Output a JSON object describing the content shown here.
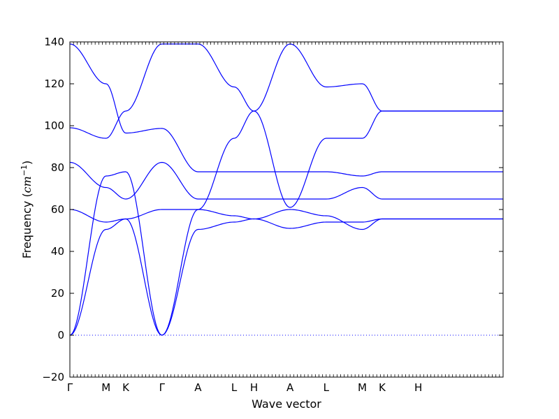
{
  "chart_data": {
    "type": "line",
    "title": "",
    "xlabel": "Wave vector",
    "ylabel_text": "Frequency (",
    "ylabel_unit": "cm",
    "ylabel_exp": "−1",
    "ylabel_close": ")",
    "ylim": [
      -20,
      140
    ],
    "yticks": [
      -20,
      0,
      20,
      40,
      60,
      80,
      100,
      120,
      140
    ],
    "xlim": [
      0,
      12
    ],
    "xticks": [
      {
        "label": "Γ",
        "x": 0
      },
      {
        "label": "M",
        "x": 1
      },
      {
        "label": "K",
        "x": 1.55
      },
      {
        "label": "Γ",
        "x": 2.55
      },
      {
        "label": "A",
        "x": 3.55
      },
      {
        "label": "L",
        "x": 4.55
      },
      {
        "label": "H",
        "x": 5.1
      },
      {
        "label": "A",
        "x": 6.1
      },
      {
        "label": "L",
        "x": 7.1
      },
      {
        "label": "M",
        "x": 8.1
      },
      {
        "label": "K",
        "x": 8.65
      },
      {
        "label": "H",
        "x": 9.65
      }
    ],
    "grid": false,
    "line_color": "#0000ff",
    "zero_line_color": "#0000ff",
    "series": [
      {
        "values": [
          [
            0,
            139
          ],
          [
            1,
            120
          ],
          [
            1.55,
            96.5
          ],
          [
            2.55,
            98.7
          ],
          [
            3.55,
            78
          ],
          [
            4.55,
            78
          ],
          [
            5.1,
            78
          ],
          [
            6.1,
            78
          ],
          [
            7.1,
            78
          ],
          [
            8.1,
            76
          ],
          [
            8.65,
            78
          ],
          [
            9.65,
            78
          ]
        ]
      },
      {
        "values": [
          [
            0,
            99
          ],
          [
            1,
            94
          ],
          [
            1.55,
            107
          ],
          [
            2.55,
            139
          ],
          [
            3.55,
            139
          ],
          [
            4.55,
            118.5
          ],
          [
            5.1,
            107
          ],
          [
            6.1,
            61
          ],
          [
            7.1,
            94
          ],
          [
            8.1,
            94
          ],
          [
            8.65,
            107
          ],
          [
            9.65,
            107
          ]
        ]
      },
      {
        "values": [
          [
            0,
            82.5
          ],
          [
            1,
            70.5
          ],
          [
            1.55,
            65
          ],
          [
            2.55,
            82.5
          ],
          [
            3.55,
            65
          ],
          [
            4.55,
            65
          ],
          [
            5.1,
            65
          ],
          [
            6.1,
            65
          ],
          [
            7.1,
            65
          ],
          [
            8.1,
            70.5
          ],
          [
            8.65,
            65
          ],
          [
            9.65,
            65
          ]
        ]
      },
      {
        "values": [
          [
            0,
            60
          ],
          [
            1,
            54
          ],
          [
            1.55,
            55.5
          ],
          [
            2.55,
            60
          ],
          [
            3.55,
            60
          ],
          [
            4.55,
            57
          ],
          [
            5.1,
            55.5
          ],
          [
            6.1,
            51
          ],
          [
            7.1,
            54
          ],
          [
            8.1,
            54
          ],
          [
            8.65,
            55.5
          ],
          [
            9.65,
            55.5
          ]
        ]
      },
      {
        "values": [
          [
            0,
            0
          ],
          [
            1,
            76
          ],
          [
            1.55,
            78
          ],
          [
            2.55,
            0
          ],
          [
            3.55,
            60
          ],
          [
            4.55,
            94
          ],
          [
            5.1,
            107
          ],
          [
            6.1,
            139
          ],
          [
            7.1,
            118.5
          ],
          [
            8.1,
            120
          ],
          [
            8.65,
            107
          ],
          [
            9.65,
            107
          ]
        ]
      },
      {
        "values": [
          [
            0,
            0
          ],
          [
            1,
            50.5
          ],
          [
            1.55,
            55.5
          ],
          [
            2.55,
            0
          ],
          [
            3.55,
            50.5
          ],
          [
            4.55,
            54
          ],
          [
            5.1,
            55.5
          ],
          [
            6.1,
            60
          ],
          [
            7.1,
            57
          ],
          [
            8.1,
            50.5
          ],
          [
            8.65,
            55.5
          ],
          [
            9.65,
            55.5
          ]
        ]
      }
    ]
  }
}
